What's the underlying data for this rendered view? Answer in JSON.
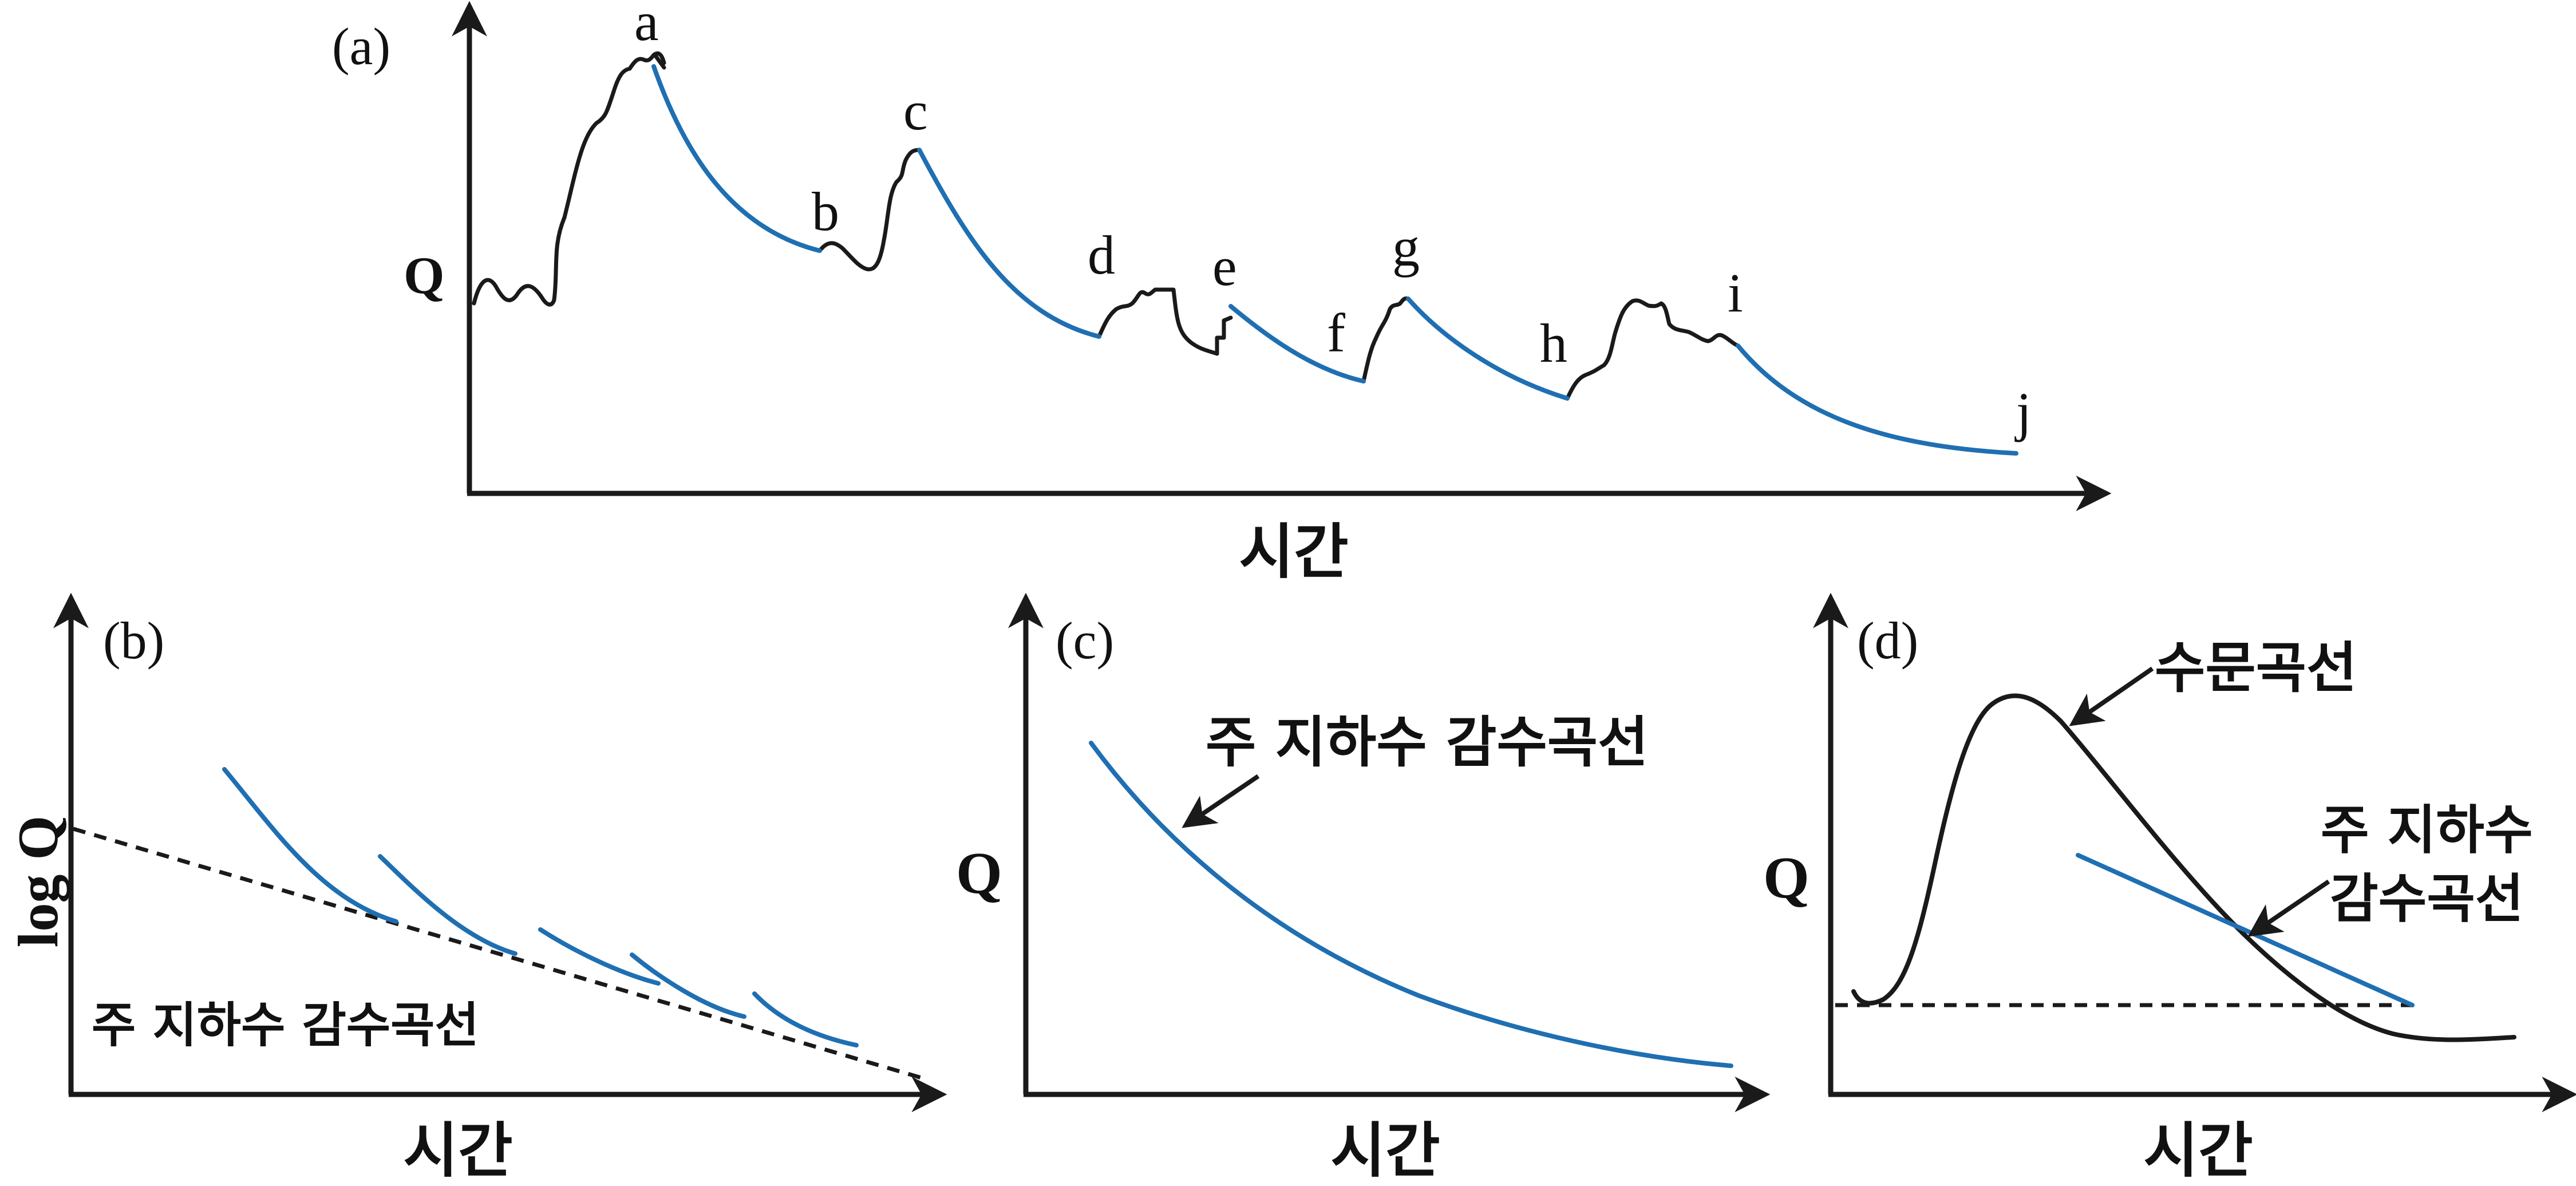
{
  "colors": {
    "recession": "#1f6fb2",
    "hydrograph": "#1a1a1a"
  },
  "panel_a": {
    "label": "(a)",
    "y_label": "Q",
    "x_label": "시간",
    "points": [
      "a",
      "b",
      "c",
      "d",
      "e",
      "f",
      "g",
      "h",
      "i",
      "j"
    ]
  },
  "panel_b": {
    "label": "(b)",
    "y_label": "log Q",
    "x_label": "시간",
    "annotation": "주 지하수 감수곡선"
  },
  "panel_c": {
    "label": "(c)",
    "y_label": "Q",
    "x_label": "시간",
    "annotation": "주 지하수 감수곡선"
  },
  "panel_d": {
    "label": "(d)",
    "y_label": "Q",
    "x_label": "시간",
    "annotation_hydrograph": "수문곡선",
    "annotation_recession_line1": "주 지하수",
    "annotation_recession_line2": "감수곡선"
  }
}
